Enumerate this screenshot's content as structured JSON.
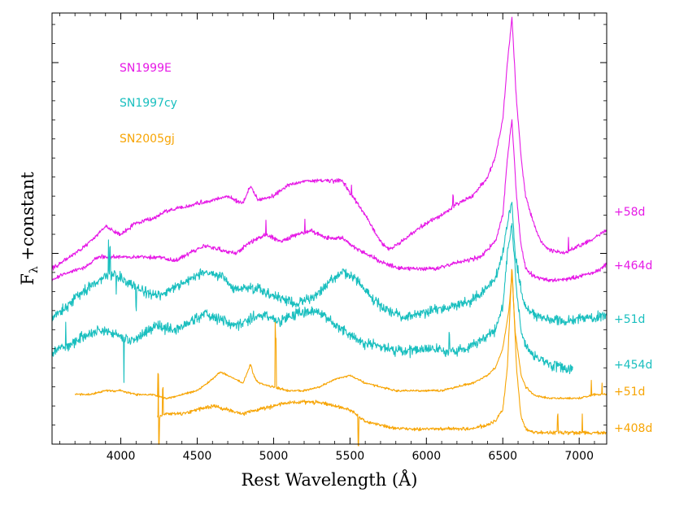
{
  "chart_data": {
    "type": "line",
    "xlabel": "Rest Wavelength (Å)",
    "ylabel_main": "F",
    "ylabel_sub": "λ",
    "ylabel_rest": " +constant",
    "xlim": [
      3550,
      7180
    ],
    "ylim": [
      0,
      11.3
    ],
    "x_ticks": [
      4000,
      4500,
      5000,
      5500,
      6000,
      6500,
      7000
    ],
    "x_tick_labels": [
      "4000",
      "4500",
      "5000",
      "5500",
      "6000",
      "6500",
      "7000"
    ],
    "legend": [
      {
        "label": "SN1999E",
        "color": "#e619e6"
      },
      {
        "label": "SN1997cy",
        "color": "#1abfbf"
      },
      {
        "label": "SN2005gj",
        "color": "#f7a505"
      }
    ],
    "epoch_labels": [
      {
        "label": "+58d",
        "color": "#e619e6",
        "y": 6.2
      },
      {
        "label": "+464d",
        "color": "#e619e6",
        "y": 4.75
      },
      {
        "label": "+51d",
        "color": "#1abfbf",
        "y": 3.35
      },
      {
        "label": "+454d",
        "color": "#1abfbf",
        "y": 2.15
      },
      {
        "label": "+51d",
        "color": "#f7a505",
        "y": 1.35
      },
      {
        "label": "+408d",
        "color": "#f7a505",
        "y": 0.38
      }
    ],
    "series": [
      {
        "name": "SN1999E +58d",
        "color": "#e619e6",
        "noise": 0.08,
        "x": [
          3550,
          3700,
          3800,
          3900,
          4000,
          4100,
          4200,
          4300,
          4400,
          4500,
          4600,
          4700,
          4800,
          4850,
          4870,
          4900,
          5000,
          5100,
          5200,
          5300,
          5400,
          5450,
          5500,
          5600,
          5700,
          5750,
          5800,
          5900,
          6000,
          6100,
          6200,
          6300,
          6400,
          6450,
          6500,
          6530,
          6560,
          6590,
          6620,
          6650,
          6700,
          6750,
          6800,
          6900,
          7000,
          7100,
          7180
        ],
        "y": [
          4.6,
          5.0,
          5.3,
          5.7,
          5.5,
          5.8,
          5.9,
          6.1,
          6.2,
          6.3,
          6.4,
          6.5,
          6.3,
          6.8,
          6.6,
          6.4,
          6.5,
          6.8,
          6.9,
          6.9,
          6.9,
          6.9,
          6.6,
          6.0,
          5.3,
          5.1,
          5.2,
          5.5,
          5.8,
          6.0,
          6.3,
          6.5,
          7.0,
          7.5,
          8.5,
          10.0,
          11.2,
          9.0,
          7.5,
          6.5,
          5.8,
          5.3,
          5.1,
          5.0,
          5.2,
          5.4,
          5.6
        ]
      },
      {
        "name": "SN1999E +464d",
        "color": "#e619e6",
        "noise": 0.08,
        "x": [
          3550,
          3650,
          3750,
          3850,
          3950,
          4050,
          4150,
          4250,
          4350,
          4450,
          4550,
          4650,
          4750,
          4850,
          4950,
          5050,
          5150,
          5250,
          5350,
          5450,
          5550,
          5650,
          5750,
          5850,
          5950,
          6050,
          6150,
          6250,
          6350,
          6450,
          6500,
          6530,
          6560,
          6590,
          6620,
          6650,
          6700,
          6800,
          6900,
          7000,
          7100,
          7180
        ],
        "y": [
          4.3,
          4.5,
          4.6,
          4.9,
          4.9,
          4.9,
          4.9,
          4.9,
          4.8,
          5.0,
          5.2,
          5.1,
          5.0,
          5.3,
          5.5,
          5.3,
          5.5,
          5.6,
          5.4,
          5.4,
          5.1,
          4.9,
          4.7,
          4.6,
          4.6,
          4.6,
          4.7,
          4.8,
          4.9,
          5.3,
          6.0,
          7.5,
          8.5,
          6.5,
          5.2,
          4.6,
          4.4,
          4.3,
          4.3,
          4.4,
          4.5,
          4.7
        ]
      },
      {
        "name": "SN1997cy +51d",
        "color": "#1abfbf",
        "noise": 0.2,
        "x": [
          3550,
          3650,
          3750,
          3850,
          3950,
          4050,
          4150,
          4250,
          4350,
          4450,
          4550,
          4650,
          4750,
          4850,
          4950,
          5050,
          5150,
          5250,
          5350,
          5450,
          5550,
          5650,
          5750,
          5850,
          5950,
          6050,
          6150,
          6250,
          6350,
          6450,
          6500,
          6540,
          6560,
          6580,
          6620,
          6650,
          6700,
          6800,
          6900,
          7000,
          7100,
          7180
        ],
        "y": [
          3.3,
          3.6,
          4.0,
          4.3,
          4.5,
          4.2,
          4.0,
          3.9,
          4.1,
          4.3,
          4.5,
          4.4,
          4.1,
          4.1,
          4.0,
          3.8,
          3.7,
          3.8,
          4.2,
          4.5,
          4.3,
          3.8,
          3.5,
          3.3,
          3.4,
          3.5,
          3.6,
          3.7,
          3.9,
          4.3,
          5.0,
          6.0,
          6.3,
          5.0,
          4.0,
          3.6,
          3.4,
          3.3,
          3.2,
          3.3,
          3.3,
          3.4
        ]
      },
      {
        "name": "SN1997cy +454d",
        "color": "#1abfbf",
        "noise": 0.2,
        "x": [
          3550,
          3650,
          3750,
          3850,
          3950,
          4050,
          4150,
          4250,
          4350,
          4450,
          4550,
          4650,
          4750,
          4850,
          4950,
          5050,
          5150,
          5250,
          5350,
          5450,
          5550,
          5650,
          5750,
          5850,
          5950,
          6050,
          6150,
          6250,
          6350,
          6450,
          6500,
          6530,
          6560,
          6590,
          6620,
          6650,
          6700,
          6800,
          6900,
          6960
        ],
        "y": [
          2.4,
          2.6,
          2.8,
          3.0,
          2.9,
          2.7,
          2.9,
          3.1,
          3.0,
          3.2,
          3.4,
          3.3,
          3.1,
          3.3,
          3.4,
          3.2,
          3.4,
          3.5,
          3.3,
          3.0,
          2.7,
          2.6,
          2.5,
          2.4,
          2.5,
          2.5,
          2.4,
          2.5,
          2.7,
          3.0,
          3.6,
          5.0,
          5.8,
          4.0,
          3.0,
          2.6,
          2.3,
          2.1,
          2.0,
          2.0
        ]
      },
      {
        "name": "SN2005gj +51d",
        "color": "#f7a505",
        "noise": 0.04,
        "x": [
          3700,
          3800,
          3900,
          4000,
          4100,
          4200,
          4300,
          4400,
          4500,
          4600,
          4650,
          4700,
          4800,
          4850,
          4870,
          4900,
          5000,
          5100,
          5200,
          5300,
          5400,
          5500,
          5600,
          5700,
          5800,
          5900,
          6000,
          6100,
          6200,
          6300,
          6400,
          6450,
          6500,
          6540,
          6560,
          6580,
          6620,
          6650,
          6700,
          6800,
          6900,
          7000,
          7100,
          7180
        ],
        "y": [
          1.3,
          1.3,
          1.4,
          1.4,
          1.3,
          1.3,
          1.2,
          1.3,
          1.4,
          1.7,
          1.9,
          1.8,
          1.6,
          2.1,
          1.8,
          1.6,
          1.5,
          1.4,
          1.4,
          1.5,
          1.7,
          1.8,
          1.6,
          1.5,
          1.4,
          1.4,
          1.4,
          1.4,
          1.5,
          1.6,
          1.8,
          2.0,
          2.5,
          3.5,
          4.5,
          3.0,
          1.8,
          1.5,
          1.3,
          1.2,
          1.2,
          1.2,
          1.3,
          1.3
        ]
      },
      {
        "name": "SN2005gj +408d",
        "color": "#f7a505",
        "noise": 0.07,
        "x": [
          4240,
          4300,
          4400,
          4500,
          4600,
          4700,
          4800,
          4900,
          5000,
          5100,
          5200,
          5300,
          5400,
          5500,
          5600,
          5700,
          5800,
          5900,
          6000,
          6100,
          6200,
          6300,
          6400,
          6450,
          6500,
          6530,
          6560,
          6590,
          6620,
          6650,
          6700,
          6800,
          6900,
          7000,
          7100,
          7180
        ],
        "y": [
          0.7,
          0.8,
          0.8,
          0.9,
          1.0,
          0.9,
          0.8,
          0.9,
          1.0,
          1.1,
          1.1,
          1.1,
          1.0,
          0.9,
          0.6,
          0.5,
          0.4,
          0.4,
          0.4,
          0.4,
          0.4,
          0.4,
          0.5,
          0.6,
          0.9,
          2.0,
          4.7,
          2.0,
          0.7,
          0.4,
          0.3,
          0.3,
          0.3,
          0.3,
          0.3,
          0.3
        ]
      }
    ],
    "spikes": [
      {
        "series": 0,
        "x": 6930,
        "dy": 0.35
      },
      {
        "series": 0,
        "x": 6175,
        "dy": 0.3
      },
      {
        "series": 0,
        "x": 5510,
        "dy": 0.25
      },
      {
        "series": 1,
        "x": 5205,
        "dy": 0.3
      },
      {
        "series": 1,
        "x": 4950,
        "dy": 0.35
      },
      {
        "series": 2,
        "x": 3920,
        "dy": 0.9
      },
      {
        "series": 2,
        "x": 3930,
        "dy": 0.7
      },
      {
        "series": 2,
        "x": 3970,
        "dy": -0.5
      },
      {
        "series": 2,
        "x": 4100,
        "dy": -0.6
      },
      {
        "series": 3,
        "x": 4020,
        "dy": -1.2
      },
      {
        "series": 3,
        "x": 3640,
        "dy": 0.6
      },
      {
        "series": 3,
        "x": 6150,
        "dy": 0.5
      },
      {
        "series": 4,
        "x": 4245,
        "dy": 0.6
      },
      {
        "series": 4,
        "x": 5010,
        "dy": 1.7
      },
      {
        "series": 4,
        "x": 5015,
        "dy": 1.3
      },
      {
        "series": 4,
        "x": 7080,
        "dy": 0.4
      },
      {
        "series": 4,
        "x": 7150,
        "dy": 0.3
      },
      {
        "series": 5,
        "x": 4245,
        "dy": 0.9
      },
      {
        "series": 5,
        "x": 4250,
        "dy": -0.7
      },
      {
        "series": 5,
        "x": 4275,
        "dy": 0.7
      },
      {
        "series": 5,
        "x": 5555,
        "dy": -0.8
      },
      {
        "series": 5,
        "x": 6860,
        "dy": 0.5
      },
      {
        "series": 5,
        "x": 7020,
        "dy": 0.5
      }
    ]
  }
}
